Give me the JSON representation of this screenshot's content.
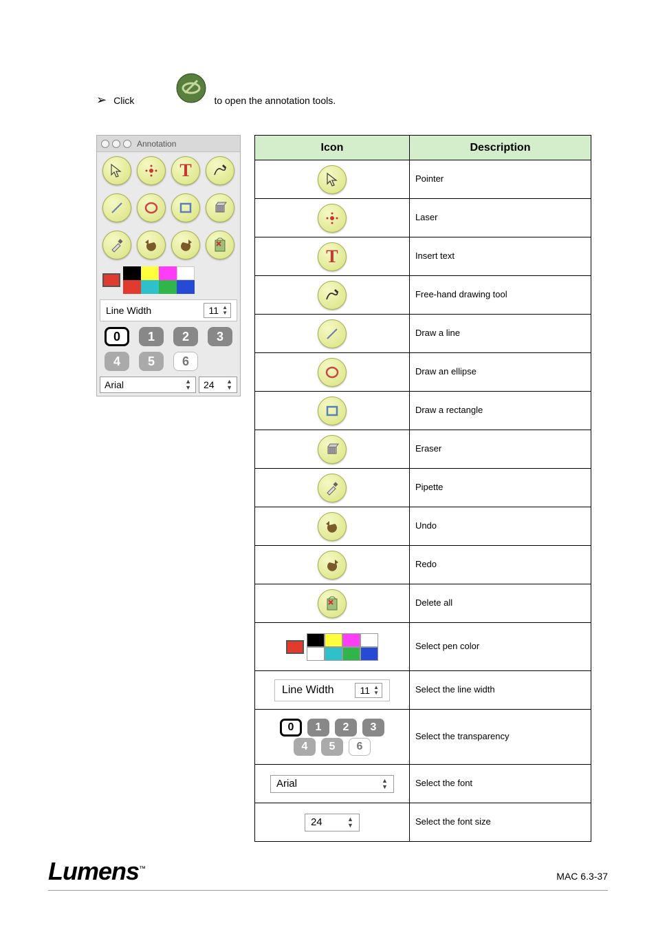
{
  "header": {
    "pre_text": "Click",
    "post_text": " to open the annotation tools.",
    "main_icon_bg": "#587f3d",
    "main_icon_stroke": "#c4d89a"
  },
  "panel": {
    "title": "Annotation",
    "line_width_label": "Line Width",
    "line_width_value": "11",
    "font_name": "Arial",
    "font_size": "24",
    "colors": {
      "selected": "#e13a2e",
      "grid": [
        "#000000",
        "#ffff3c",
        "#ff3df7",
        "#ffffff",
        "#2fc1c9",
        "#2fb54a",
        "#2649d6"
      ]
    },
    "numbers_row1": [
      "0",
      "1",
      "2",
      "3"
    ],
    "numbers_row2": [
      "4",
      "5",
      "6"
    ]
  },
  "table": {
    "head_icon": "Icon",
    "head_desc": "Description",
    "rows": [
      {
        "icon": "pointer",
        "desc": "Pointer"
      },
      {
        "icon": "laser",
        "desc": "Laser"
      },
      {
        "icon": "text",
        "desc": "Insert text"
      },
      {
        "icon": "freehand",
        "desc": "Free-hand drawing tool"
      },
      {
        "icon": "line",
        "desc": "Draw a line"
      },
      {
        "icon": "ellipse",
        "desc": "Draw an ellipse"
      },
      {
        "icon": "rect",
        "desc": "Draw a rectangle"
      },
      {
        "icon": "eraser",
        "desc": "Eraser"
      },
      {
        "icon": "eyedrop",
        "desc": "Pipette"
      },
      {
        "icon": "undo",
        "desc": "Undo"
      },
      {
        "icon": "redo",
        "desc": "Redo"
      },
      {
        "icon": "delete",
        "desc": "Delete all"
      },
      {
        "icon": "colors",
        "desc": "Select pen color"
      },
      {
        "icon": "linewidth",
        "desc": "Select the line width"
      },
      {
        "icon": "transparency",
        "desc": "Select the transparency"
      },
      {
        "icon": "font",
        "desc": "Select the font"
      },
      {
        "icon": "fontsize",
        "desc": "Select the font size"
      }
    ]
  },
  "footer": {
    "logo": "Lumens",
    "page": "MAC 6.3-37"
  }
}
